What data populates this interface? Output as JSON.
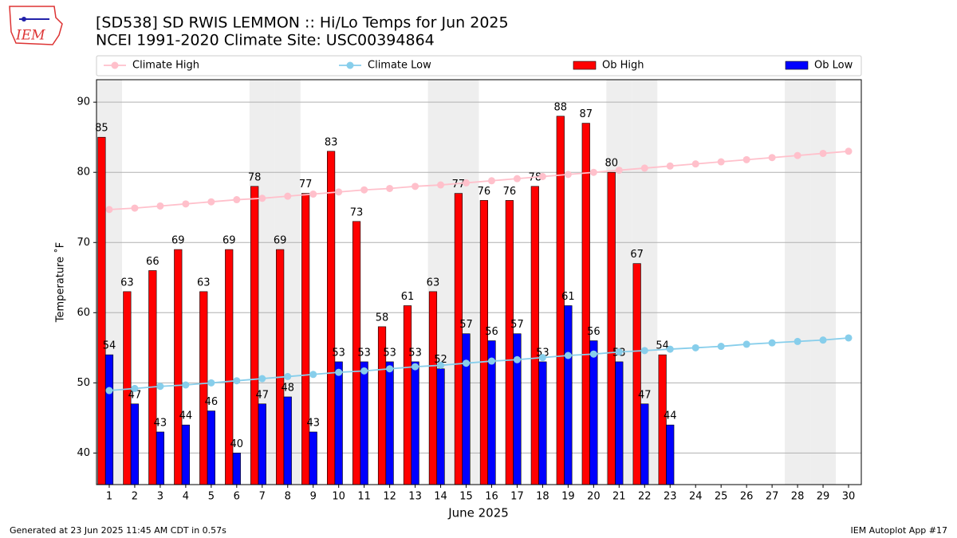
{
  "chart_data": {
    "type": "bar_line",
    "logo_text": "IEM",
    "title": "[SD538] SD RWIS LEMMON :: Hi/Lo Temps for Jun 2025",
    "subtitle": "NCEI 1991-2020 Climate Site: USC00394864",
    "xlabel": "June 2025",
    "ylabel": "Temperature ˚F",
    "footer_left": "Generated at 23 Jun 2025 11:45 AM CDT in 0.57s",
    "footer_right": "IEM Autoplot App #17",
    "x": [
      1,
      2,
      3,
      4,
      5,
      6,
      7,
      8,
      9,
      10,
      11,
      12,
      13,
      14,
      15,
      16,
      17,
      18,
      19,
      20,
      21,
      22,
      23,
      24,
      25,
      26,
      27,
      28,
      29,
      30
    ],
    "xlim": [
      0.5,
      30.5
    ],
    "xticks": [
      1,
      2,
      3,
      4,
      5,
      6,
      7,
      8,
      9,
      10,
      11,
      12,
      13,
      14,
      15,
      16,
      17,
      18,
      19,
      20,
      21,
      22,
      23,
      24,
      25,
      26,
      27,
      28,
      29,
      30
    ],
    "ylim": [
      35.5,
      93.2
    ],
    "yticks": [
      40,
      50,
      60,
      70,
      80,
      90
    ],
    "grid": true,
    "legend": "top",
    "shaded_days": [
      1,
      7,
      8,
      14,
      15,
      21,
      22,
      28,
      29
    ],
    "shade_color": "#eeeeee",
    "series": [
      {
        "name": "Climate High",
        "kind": "line",
        "color": "pink",
        "values": [
          74.7,
          74.9,
          75.2,
          75.5,
          75.8,
          76.1,
          76.3,
          76.6,
          76.9,
          77.2,
          77.5,
          77.7,
          78.0,
          78.2,
          78.5,
          78.8,
          79.1,
          79.4,
          79.7,
          80.0,
          80.3,
          80.6,
          80.9,
          81.2,
          81.5,
          81.8,
          82.1,
          82.4,
          82.7,
          83.0
        ]
      },
      {
        "name": "Climate Low",
        "kind": "line",
        "color": "skyblue",
        "values": [
          48.9,
          49.2,
          49.5,
          49.7,
          50.0,
          50.3,
          50.6,
          50.9,
          51.2,
          51.5,
          51.7,
          52.0,
          52.3,
          52.5,
          52.8,
          53.1,
          53.3,
          53.6,
          53.9,
          54.1,
          54.4,
          54.6,
          54.8,
          55.0,
          55.2,
          55.5,
          55.7,
          55.9,
          56.1,
          56.4
        ]
      },
      {
        "name": "Ob High",
        "kind": "bar",
        "color": "red",
        "values": [
          85,
          63,
          66,
          69,
          63,
          69,
          78,
          69,
          77,
          83,
          73,
          58,
          61,
          63,
          77,
          76,
          76,
          78,
          88,
          87,
          80,
          67,
          54,
          null,
          null,
          null,
          null,
          null,
          null,
          null
        ]
      },
      {
        "name": "Ob Low",
        "kind": "bar",
        "color": "blue",
        "values": [
          54,
          47,
          43,
          44,
          46,
          40,
          47,
          48,
          43,
          53,
          53,
          53,
          53,
          52,
          57,
          56,
          57,
          53,
          61,
          56,
          53,
          47,
          44,
          null,
          null,
          null,
          null,
          null,
          null,
          null
        ]
      }
    ]
  }
}
